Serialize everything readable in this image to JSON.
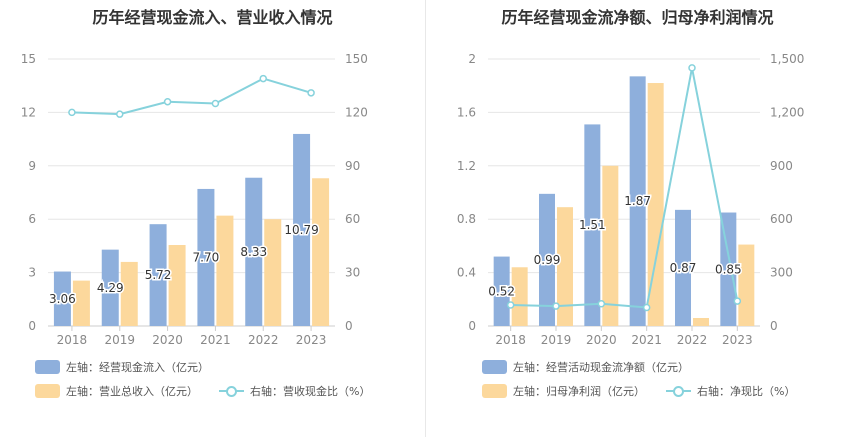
{
  "charts": {
    "left": {
      "title": "历年经营现金流入、营业收入情况",
      "legend": {
        "s1": "左轴：经营现金流入（亿元）",
        "s2": "左轴：营业总收入（亿元）",
        "s3": "右轴：营收现金比（%）"
      }
    },
    "right": {
      "title": "历年经营现金流净额、归母净利润情况",
      "legend": {
        "s1": "左轴：经营活动现金流净额（亿元）",
        "s2": "左轴：归母净利润（亿元）",
        "s3": "右轴：净现比（%）"
      }
    }
  },
  "colors": {
    "bar1": "#8eafdc",
    "bar2": "#fcd89c",
    "line": "#86d2dc",
    "grid": "#e6e6e6",
    "axis": "#888888"
  },
  "chart_data": [
    {
      "type": "bar",
      "title": "历年经营现金流入、营业收入情况",
      "categories": [
        "2018",
        "2019",
        "2020",
        "2021",
        "2022",
        "2023"
      ],
      "series": [
        {
          "name": "左轴：经营现金流入（亿元）",
          "axis": "left",
          "type": "bar",
          "values": [
            3.06,
            4.29,
            5.72,
            7.7,
            8.33,
            10.79
          ],
          "labels": [
            "3.06",
            "4.29",
            "5.72",
            "7.70",
            "8.33",
            "10.79"
          ]
        },
        {
          "name": "左轴：营业总收入（亿元）",
          "axis": "left",
          "type": "bar",
          "values": [
            2.55,
            3.6,
            4.55,
            6.2,
            6.0,
            8.3
          ]
        },
        {
          "name": "右轴：营收现金比（%）",
          "axis": "right",
          "type": "line",
          "values": [
            120,
            119,
            126,
            125,
            139,
            131
          ]
        }
      ],
      "left_axis": {
        "ticks": [
          "0",
          "3",
          "6",
          "9",
          "12",
          "15"
        ],
        "ylim": [
          0,
          15
        ]
      },
      "right_axis": {
        "ticks": [
          "0",
          "30",
          "60",
          "90",
          "120",
          "150"
        ],
        "ylim": [
          0,
          150
        ]
      },
      "grid": true,
      "legend_position": "bottom-left"
    },
    {
      "type": "bar",
      "title": "历年经营现金流净额、归母净利润情况",
      "categories": [
        "2018",
        "2019",
        "2020",
        "2021",
        "2022",
        "2023"
      ],
      "series": [
        {
          "name": "左轴：经营活动现金流净额（亿元）",
          "axis": "left",
          "type": "bar",
          "values": [
            0.52,
            0.99,
            1.51,
            1.87,
            0.87,
            0.85
          ],
          "labels": [
            "0.52",
            "0.99",
            "1.51",
            "1.87",
            "0.87",
            "0.85"
          ]
        },
        {
          "name": "左轴：归母净利润（亿元）",
          "axis": "left",
          "type": "bar",
          "values": [
            0.44,
            0.89,
            1.2,
            1.82,
            0.06,
            0.61
          ]
        },
        {
          "name": "右轴：净现比（%）",
          "axis": "right",
          "type": "line",
          "values": [
            118,
            112,
            125,
            104,
            1450,
            140
          ]
        }
      ],
      "left_axis": {
        "ticks": [
          "0",
          "0.4",
          "0.8",
          "1.2",
          "1.6",
          "2"
        ],
        "ylim": [
          0,
          2
        ]
      },
      "right_axis": {
        "ticks": [
          "0",
          "300",
          "600",
          "900",
          "1,200",
          "1,500"
        ],
        "ylim": [
          0,
          1500
        ]
      },
      "grid": true,
      "legend_position": "bottom-left"
    }
  ]
}
